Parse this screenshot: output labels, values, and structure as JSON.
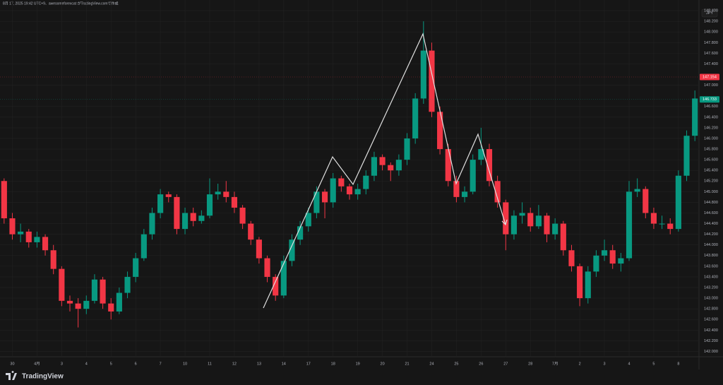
{
  "chart_data": {
    "type": "candlestick",
    "title": "8月 17, 2025 19:42 UTC+9、awesomeforexcat がTradingView.comで作成",
    "currency": "JPY",
    "brand": "TradingView",
    "up_color": "#089981",
    "down_color": "#f23645",
    "categories": [
      null,
      "30",
      null,
      null,
      "4月",
      null,
      null,
      "3",
      null,
      null,
      "4",
      null,
      null,
      "5",
      null,
      null,
      "6",
      null,
      null,
      "7",
      null,
      null,
      "10",
      null,
      null,
      "11",
      null,
      null,
      "12",
      null,
      null,
      "13",
      null,
      null,
      "14",
      null,
      null,
      "17",
      null,
      null,
      "18",
      null,
      null,
      "19",
      null,
      null,
      "20",
      null,
      null,
      "21",
      null,
      null,
      "24",
      null,
      null,
      "25",
      null,
      null,
      "26",
      null,
      null,
      "27",
      null,
      null,
      "28",
      null,
      null,
      "7月",
      null,
      null,
      "2",
      null,
      null,
      "3",
      null,
      null,
      "4",
      null,
      null,
      "5",
      null,
      null,
      "8",
      null,
      null
    ],
    "candles": [
      [
        145.2,
        145.25,
        144.4,
        144.5
      ],
      [
        144.5,
        144.6,
        144.1,
        144.2
      ],
      [
        144.2,
        144.4,
        144.05,
        144.25
      ],
      [
        144.25,
        144.3,
        143.95,
        144.05
      ],
      [
        144.05,
        144.25,
        143.95,
        144.15
      ],
      [
        144.15,
        144.2,
        143.8,
        143.9
      ],
      [
        143.9,
        144.0,
        143.45,
        143.55
      ],
      [
        143.55,
        143.6,
        142.85,
        142.95
      ],
      [
        142.95,
        143.05,
        142.75,
        142.9
      ],
      [
        142.9,
        143.0,
        142.45,
        142.8
      ],
      [
        142.8,
        143.05,
        142.7,
        142.95
      ],
      [
        142.95,
        143.45,
        142.9,
        143.35
      ],
      [
        143.35,
        143.4,
        142.8,
        142.9
      ],
      [
        142.9,
        143.0,
        142.6,
        142.75
      ],
      [
        142.75,
        143.2,
        142.7,
        143.1
      ],
      [
        143.1,
        143.5,
        143.0,
        143.4
      ],
      [
        143.4,
        143.85,
        143.3,
        143.75
      ],
      [
        143.75,
        144.3,
        143.7,
        144.2
      ],
      [
        144.2,
        144.7,
        144.1,
        144.6
      ],
      [
        144.6,
        145.05,
        144.5,
        144.95
      ],
      [
        144.95,
        145.0,
        144.8,
        144.9
      ],
      [
        144.9,
        144.95,
        144.2,
        144.3
      ],
      [
        144.3,
        144.7,
        144.2,
        144.6
      ],
      [
        144.6,
        144.7,
        144.35,
        144.45
      ],
      [
        144.45,
        144.65,
        144.4,
        144.55
      ],
      [
        144.55,
        145.25,
        144.5,
        144.95
      ],
      [
        144.95,
        145.15,
        144.85,
        145.0
      ],
      [
        145.0,
        145.2,
        144.8,
        144.9
      ],
      [
        144.9,
        145.0,
        144.6,
        144.7
      ],
      [
        144.7,
        144.75,
        144.3,
        144.4
      ],
      [
        144.4,
        144.45,
        144.0,
        144.1
      ],
      [
        144.1,
        144.15,
        143.65,
        143.75
      ],
      [
        143.75,
        143.8,
        143.3,
        143.4
      ],
      [
        143.4,
        143.45,
        142.95,
        143.05
      ],
      [
        143.05,
        143.8,
        143.0,
        143.7
      ],
      [
        143.7,
        144.2,
        143.6,
        144.1
      ],
      [
        144.1,
        144.45,
        144.0,
        144.35
      ],
      [
        144.35,
        144.7,
        144.25,
        144.6
      ],
      [
        144.6,
        145.1,
        144.5,
        145.0
      ],
      [
        145.0,
        145.05,
        144.5,
        144.8
      ],
      [
        144.8,
        145.35,
        144.7,
        145.25
      ],
      [
        145.25,
        145.3,
        145.0,
        145.1
      ],
      [
        145.1,
        145.15,
        144.85,
        144.95
      ],
      [
        144.95,
        145.15,
        144.85,
        145.05
      ],
      [
        145.05,
        145.4,
        144.95,
        145.3
      ],
      [
        145.3,
        145.75,
        145.2,
        145.65
      ],
      [
        145.65,
        145.7,
        145.4,
        145.5
      ],
      [
        145.5,
        145.55,
        145.2,
        145.4
      ],
      [
        145.4,
        145.7,
        145.3,
        145.6
      ],
      [
        145.6,
        146.1,
        145.5,
        146.0
      ],
      [
        146.0,
        146.85,
        145.9,
        146.75
      ],
      [
        146.75,
        148.2,
        146.65,
        147.65
      ],
      [
        147.65,
        147.8,
        146.4,
        146.5
      ],
      [
        146.5,
        146.6,
        145.7,
        145.8
      ],
      [
        145.8,
        145.9,
        145.1,
        145.2
      ],
      [
        145.2,
        145.3,
        144.8,
        144.9
      ],
      [
        144.9,
        145.1,
        144.8,
        145.0
      ],
      [
        145.0,
        145.7,
        144.95,
        145.6
      ],
      [
        145.6,
        146.2,
        145.5,
        145.8
      ],
      [
        145.8,
        145.9,
        145.1,
        145.2
      ],
      [
        145.2,
        145.3,
        144.7,
        144.8
      ],
      [
        144.8,
        144.85,
        143.9,
        144.2
      ],
      [
        144.2,
        144.65,
        144.1,
        144.55
      ],
      [
        144.55,
        144.8,
        144.4,
        144.6
      ],
      [
        144.6,
        144.7,
        144.25,
        144.35
      ],
      [
        144.35,
        144.75,
        144.3,
        144.55
      ],
      [
        144.55,
        144.6,
        144.05,
        144.2
      ],
      [
        144.2,
        144.5,
        144.1,
        144.4
      ],
      [
        144.4,
        144.45,
        143.8,
        143.9
      ],
      [
        143.9,
        144.0,
        143.5,
        143.6
      ],
      [
        143.6,
        143.65,
        142.85,
        143.0
      ],
      [
        143.0,
        143.6,
        142.9,
        143.5
      ],
      [
        143.5,
        143.9,
        143.4,
        143.8
      ],
      [
        143.8,
        144.1,
        143.7,
        143.9
      ],
      [
        143.9,
        144.0,
        143.55,
        143.65
      ],
      [
        143.65,
        143.85,
        143.5,
        143.75
      ],
      [
        143.75,
        145.2,
        143.7,
        145.0
      ],
      [
        145.0,
        145.25,
        144.9,
        145.05
      ],
      [
        145.05,
        145.1,
        144.5,
        144.6
      ],
      [
        144.6,
        144.7,
        144.3,
        144.4
      ],
      [
        144.4,
        144.55,
        144.3,
        144.4
      ],
      [
        144.4,
        144.5,
        144.2,
        144.3
      ],
      [
        144.3,
        145.4,
        144.25,
        145.3
      ],
      [
        145.3,
        146.15,
        145.2,
        146.05
      ],
      [
        146.05,
        146.9,
        145.95,
        146.75
      ]
    ],
    "ylim": [
      141.9,
      148.6
    ],
    "yticks": [
      {
        "value": 148.4,
        "label": "148.400"
      },
      {
        "value": 148.2,
        "label": "148.200"
      },
      {
        "value": 148.0,
        "label": "148.000"
      },
      {
        "value": 147.8,
        "label": "147.800"
      },
      {
        "value": 147.6,
        "label": "147.600"
      },
      {
        "value": 147.4,
        "label": "147.400"
      },
      {
        "value": 147.0,
        "label": "147.000"
      },
      {
        "value": 146.6,
        "label": "146.600"
      },
      {
        "value": 146.4,
        "label": "146.400"
      },
      {
        "value": 146.2,
        "label": "146.200"
      },
      {
        "value": 146.0,
        "label": "146.000"
      },
      {
        "value": 145.8,
        "label": "145.800"
      },
      {
        "value": 145.6,
        "label": "145.600"
      },
      {
        "value": 145.4,
        "label": "145.400"
      },
      {
        "value": 145.2,
        "label": "145.200"
      },
      {
        "value": 145.0,
        "label": "145.000"
      },
      {
        "value": 144.8,
        "label": "144.800"
      },
      {
        "value": 144.6,
        "label": "144.600"
      },
      {
        "value": 144.4,
        "label": "144.400"
      },
      {
        "value": 144.2,
        "label": "144.200"
      },
      {
        "value": 144.0,
        "label": "144.000"
      },
      {
        "value": 143.8,
        "label": "143.800"
      },
      {
        "value": 143.6,
        "label": "143.600"
      },
      {
        "value": 143.4,
        "label": "143.400"
      },
      {
        "value": 143.2,
        "label": "143.200"
      },
      {
        "value": 143.0,
        "label": "143.000"
      },
      {
        "value": 142.8,
        "label": "142.800"
      },
      {
        "value": 142.6,
        "label": "142.600"
      },
      {
        "value": 142.4,
        "label": "142.400"
      },
      {
        "value": 142.2,
        "label": "142.200"
      },
      {
        "value": 142.0,
        "label": "142.000"
      }
    ],
    "price_lines": [
      {
        "value": 147.154,
        "label": "147.154",
        "color": "#f23645"
      },
      {
        "value": 146.733,
        "label": "146.733",
        "color": "#089981"
      }
    ],
    "grid": true
  }
}
